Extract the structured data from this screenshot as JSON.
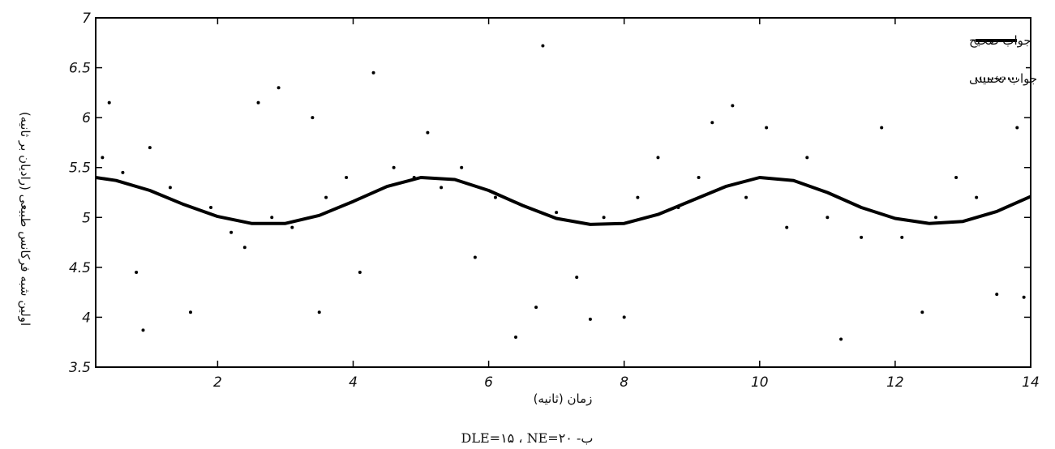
{
  "chart_data": {
    "type": "line",
    "xlabel": "زمان (ثانیه)",
    "ylabel": "اولین شبه فرکانس طبیعی (رادیان بر ثانیه)",
    "caption": "ب- DLE=۱۵ ، NE=۲۰",
    "xlim": [
      0.2,
      14
    ],
    "ylim": [
      3.5,
      7
    ],
    "xticks": [
      2,
      4,
      6,
      8,
      10,
      12,
      14
    ],
    "xtick_labels": [
      "2",
      "4",
      "6",
      "8",
      "10",
      "12",
      "14"
    ],
    "yticks": [
      3.5,
      4,
      4.5,
      5,
      5.5,
      6,
      6.5,
      7
    ],
    "ytick_labels": [
      "3.5",
      "4",
      "4.5",
      "5",
      "5.5",
      "6",
      "6.5",
      "7"
    ],
    "grid": false,
    "legend_position": "top-right",
    "series": [
      {
        "name": "جواب صحیح",
        "style": "solid",
        "color": "#000000",
        "x": [
          0.2,
          0.5,
          1.0,
          1.5,
          2.0,
          2.5,
          3.0,
          3.5,
          4.0,
          4.5,
          5.0,
          5.5,
          6.0,
          6.5,
          7.0,
          7.5,
          8.0,
          8.5,
          9.0,
          9.5,
          10.0,
          10.5,
          11.0,
          11.5,
          12.0,
          12.5,
          13.0,
          13.5,
          14.0
        ],
        "y": [
          5.4,
          5.37,
          5.27,
          5.13,
          5.01,
          4.94,
          4.94,
          5.02,
          5.16,
          5.31,
          5.4,
          5.38,
          5.27,
          5.12,
          4.99,
          4.93,
          4.94,
          5.03,
          5.17,
          5.31,
          5.4,
          5.37,
          5.25,
          5.1,
          4.99,
          4.94,
          4.96,
          5.06,
          5.21
        ]
      },
      {
        "name": "جواب تخمینی",
        "style": "dotted-scatter",
        "color": "#000000",
        "x": [
          0.3,
          0.4,
          0.6,
          0.8,
          0.9,
          1.0,
          1.3,
          1.6,
          1.9,
          2.2,
          2.4,
          2.6,
          2.8,
          2.9,
          3.1,
          3.4,
          3.5,
          3.6,
          3.9,
          4.1,
          4.3,
          4.6,
          4.9,
          5.1,
          5.3,
          5.6,
          5.8,
          6.1,
          6.4,
          6.7,
          6.8,
          7.0,
          7.3,
          7.5,
          7.7,
          8.0,
          8.2,
          8.5,
          8.8,
          9.1,
          9.3,
          9.6,
          9.8,
          10.1,
          10.4,
          10.7,
          11.0,
          11.2,
          11.5,
          11.8,
          12.1,
          12.4,
          12.6,
          12.9,
          13.2,
          13.5,
          13.8,
          13.9
        ],
        "y": [
          5.6,
          6.15,
          5.45,
          4.45,
          3.87,
          5.7,
          5.3,
          4.05,
          5.1,
          4.85,
          4.7,
          6.15,
          5.0,
          6.3,
          4.9,
          6.0,
          4.05,
          5.2,
          5.4,
          4.45,
          6.45,
          5.5,
          5.4,
          5.85,
          5.3,
          5.5,
          4.6,
          5.2,
          3.8,
          4.1,
          6.72,
          5.05,
          4.4,
          3.98,
          5.0,
          4.0,
          5.2,
          5.6,
          5.1,
          5.4,
          5.95,
          6.12,
          5.2,
          5.9,
          4.9,
          5.6,
          5.0,
          3.78,
          4.8,
          5.9,
          4.8,
          4.05,
          5.0,
          5.4,
          5.2,
          4.23,
          5.9,
          4.2
        ]
      }
    ]
  }
}
